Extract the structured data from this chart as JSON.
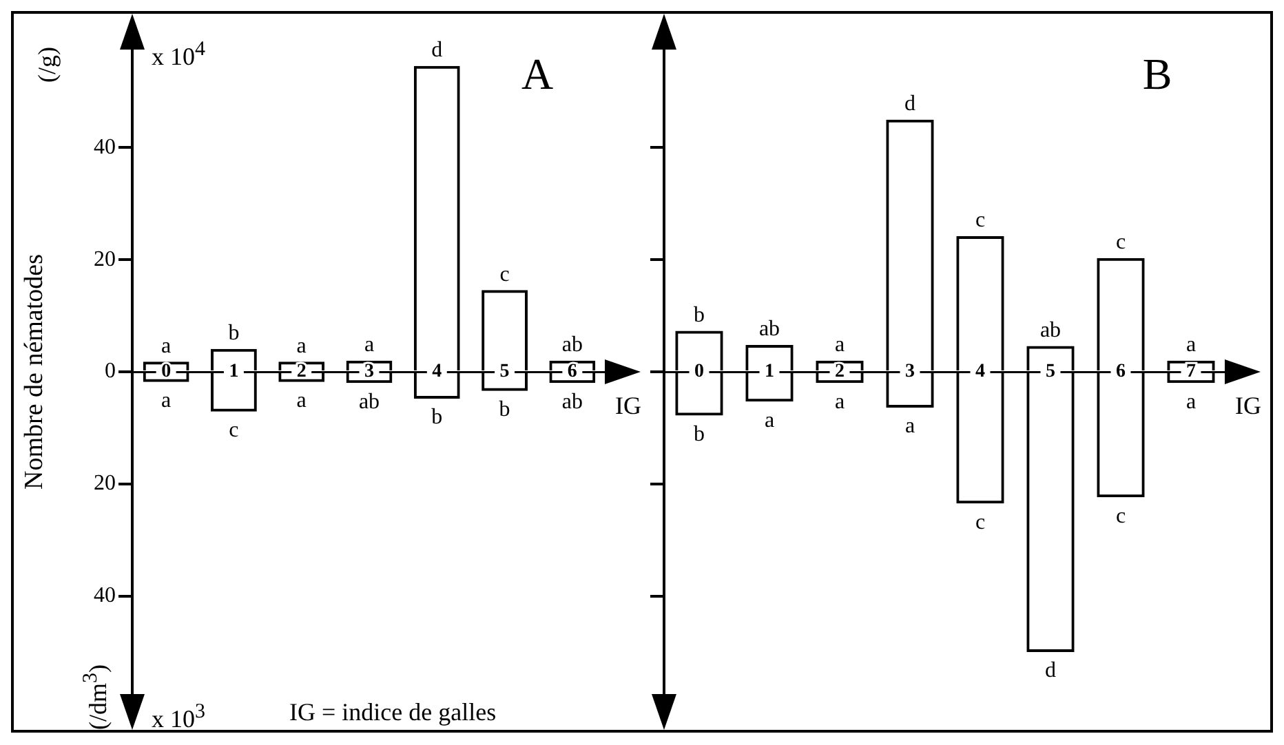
{
  "chart_data": [
    {
      "type": "bar",
      "title": "A",
      "xlabel": "IG",
      "ylabel": "Nombre de nématodes",
      "categories": [
        "0",
        "1",
        "2",
        "3",
        "4",
        "5",
        "6"
      ],
      "stacked": true,
      "grid": false,
      "legend": false,
      "series": [
        {
          "color": "#000000",
          "values": [
            1.8,
            4.1,
            1.8,
            2,
            54.6,
            14.6,
            2
          ]
        },
        {
          "color": "#000000",
          "values": [
            -1.8,
            -7.1,
            -1.8,
            -2,
            -4.8,
            -3.4,
            -2
          ]
        }
      ],
      "ylim": [
        -58,
        58
      ],
      "yticks": [
        {
          "value": -40,
          "label": "40"
        },
        {
          "value": -20,
          "label": "20"
        },
        0,
        20,
        40
      ],
      "annotations": [
        "x 10$^{4}$",
        "(/g)",
        "(/dm$^{3}$)",
        "x 10$^{3}$",
        "IG = indice de galles",
        "a",
        "a",
        "b",
        "c",
        "a",
        "a",
        "a",
        "ab",
        "d",
        "b",
        "c",
        "b",
        "ab",
        "ab"
      ]
    },
    {
      "type": "bar",
      "title": "B",
      "xlabel": "IG",
      "categories": [
        "0",
        "1",
        "2",
        "3",
        "4",
        "5",
        "6",
        "7"
      ],
      "stacked": true,
      "grid": false,
      "legend": false,
      "tick_labels": "x",
      "series": [
        {
          "color": "#000000",
          "values": [
            7.3,
            4.8,
            2,
            45,
            24.2,
            4.6,
            20.3,
            2
          ]
        },
        {
          "color": "#000000",
          "values": [
            -7.8,
            -5.3,
            -2,
            -6.4,
            -23.5,
            -50,
            -22.4,
            -2
          ]
        }
      ],
      "ylim": [
        -58,
        58
      ],
      "yticks": [
        {
          "value": -40,
          "label": null
        },
        {
          "value": -20,
          "label": null
        },
        {
          "value": 0,
          "label": null
        },
        {
          "value": 20,
          "label": null
        },
        {
          "value": 40,
          "label": null
        }
      ],
      "annotations": [
        "b",
        "b",
        "ab",
        "a",
        "a",
        "a",
        "d",
        "a",
        "c",
        "c",
        "ab",
        "d",
        "c",
        "c",
        "a",
        "a"
      ]
    }
  ]
}
